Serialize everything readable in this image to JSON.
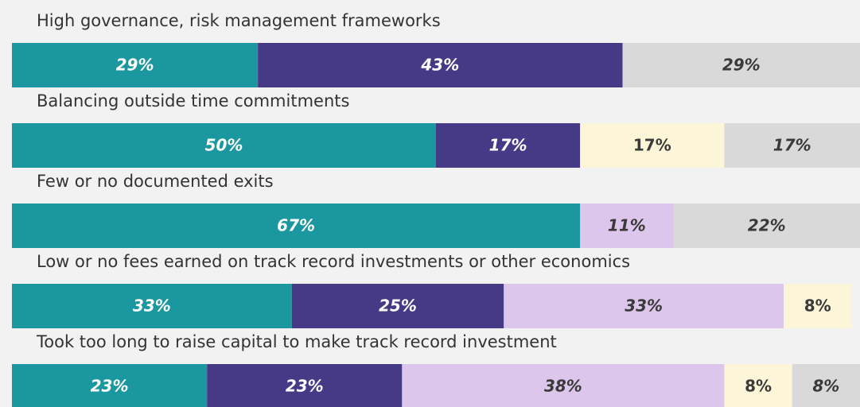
{
  "chart_data": {
    "type": "stacked-bar-horizontal",
    "categories": [
      "High governance, risk management frameworks",
      "Balancing outside time commitments",
      "Few or no documented exits",
      "Low or no fees earned on track record investments or other economics",
      "Took too long to raise capital to make track record investment"
    ],
    "xlim": [
      0,
      100
    ],
    "series": [
      {
        "color": "#1b97a0",
        "values": [
          29,
          50,
          67,
          33,
          23
        ],
        "value_labels": [
          "29%",
          "50%",
          "67%",
          "33%",
          "23%"
        ]
      },
      {
        "color": "#463a87",
        "values": [
          43,
          17,
          null,
          25,
          23
        ],
        "value_labels": [
          "43%",
          "17%",
          null,
          "25%",
          "23%"
        ]
      },
      {
        "color": "#dcc6eb",
        "values": [
          null,
          null,
          11,
          33,
          38
        ],
        "value_labels": [
          null,
          null,
          "11%",
          "33%",
          "38%"
        ]
      },
      {
        "color": "#fdf5d7",
        "values": [
          null,
          17,
          null,
          8,
          8
        ],
        "value_labels": [
          null,
          "17%",
          null,
          "8%",
          "8%"
        ]
      },
      {
        "color": "#d9d9d9",
        "values": [
          29,
          17,
          22,
          null,
          8
        ],
        "value_labels": [
          "29%",
          "17%",
          "22%",
          null,
          "8%"
        ]
      }
    ]
  }
}
